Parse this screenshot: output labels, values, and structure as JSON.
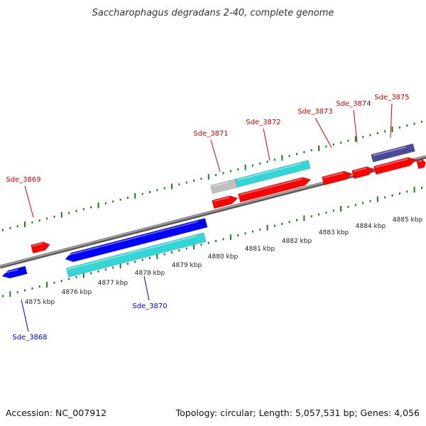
{
  "title": "Saccharophagus degradans 2-40, complete genome",
  "footer": {
    "accession": "Accession: NC_007912",
    "summary": "Topology: circular; Length: 5,057,531 bp; Genes: 4,056"
  },
  "colors": {
    "backbone": "#8a8a8a",
    "ticks": "#1f7a1f",
    "forward_gene": "#ff0000",
    "reverse_gene": "#0000ff",
    "forward_cds": "#33d6d6",
    "reverse_cds": "#33d6d6",
    "other_feature": "#bfbfbf",
    "highlight_feature": "#4a4a9a",
    "forward_label": "#cc0000",
    "reverse_label": "#0000cc"
  },
  "scale_labels": [
    "4875 kbp",
    "4876 kbp",
    "4877 kbp",
    "4878 kbp",
    "4879 kbp",
    "4880 kbp",
    "4881 kbp",
    "4882 kbp",
    "4883 kbp",
    "4884 kbp",
    "4885 kbp"
  ],
  "gene_labels": {
    "forward": [
      "Sde_3869",
      "Sde_3871",
      "Sde_3872",
      "Sde_3873",
      "Sde_3874",
      "Sde_3875"
    ],
    "reverse": [
      "Sde_3868",
      "Sde_3870"
    ]
  }
}
